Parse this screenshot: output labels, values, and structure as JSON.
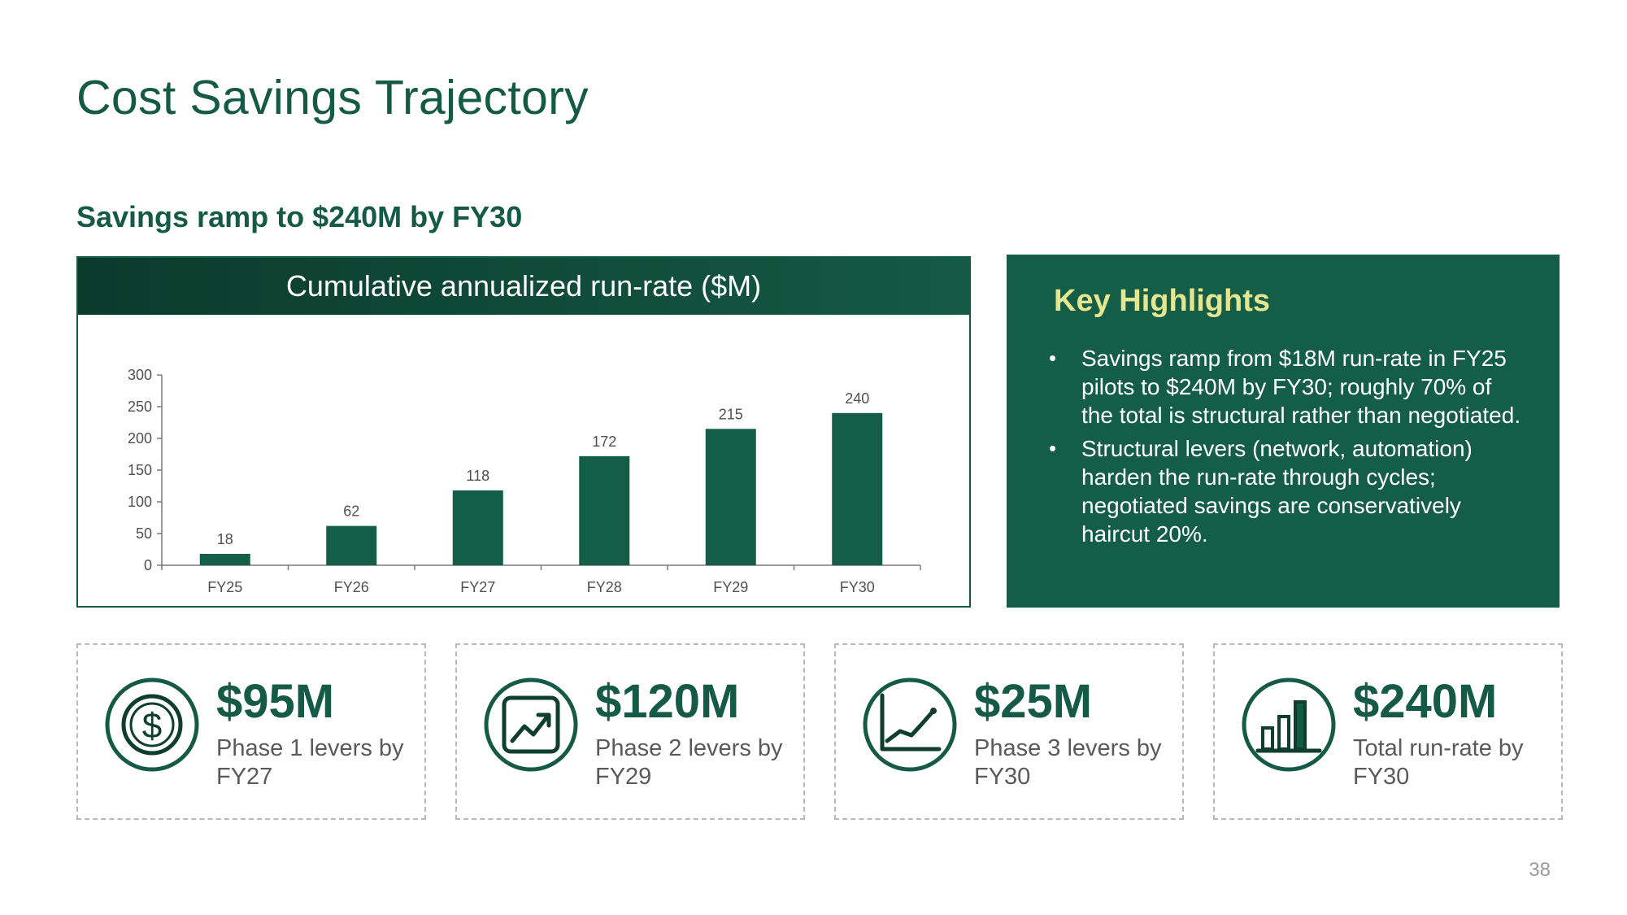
{
  "slide": {
    "title": "Cost Savings Trajectory",
    "subtitle": "Savings ramp to $240M by FY30",
    "page_number": "38"
  },
  "chart_panel": {
    "header": "Cumulative annualized run-rate ($M)"
  },
  "chart_data": {
    "type": "bar",
    "title": "Cumulative annualized run-rate ($M)",
    "categories": [
      "FY25",
      "FY26",
      "FY27",
      "FY28",
      "FY29",
      "FY30"
    ],
    "values": [
      18,
      62,
      118,
      172,
      215,
      240
    ],
    "xlabel": "",
    "ylabel": "",
    "ylim": [
      0,
      300
    ],
    "yticks": [
      0,
      50,
      100,
      150,
      200,
      250,
      300
    ],
    "grid": false,
    "data_labels": true,
    "bar_color": "#145e47"
  },
  "highlights": {
    "title": "Key Highlights",
    "items": [
      "Savings ramp from $18M run-rate in FY25 pilots to $240M by FY30; roughly 70% of the total is structural rather than negotiated.",
      "Structural levers (network, automation) harden the run-rate through cycles; negotiated savings are conservatively haircut 20%."
    ]
  },
  "kpis": [
    {
      "value": "$95M",
      "label": "Phase 1 levers by FY27",
      "icon": "dollar-coin-icon"
    },
    {
      "value": "$120M",
      "label": "Phase 2 levers by FY29",
      "icon": "trend-up-chart-icon"
    },
    {
      "value": "$25M",
      "label": "Phase 3 levers by FY30",
      "icon": "line-chart-icon"
    },
    {
      "value": "$240M",
      "label": "Total run-rate by FY30",
      "icon": "bar-chart-icon"
    }
  ],
  "colors": {
    "primary": "#145a44",
    "panel": "#145e47",
    "highlight_title": "#e6e690",
    "muted_text": "#5a5a5a"
  }
}
